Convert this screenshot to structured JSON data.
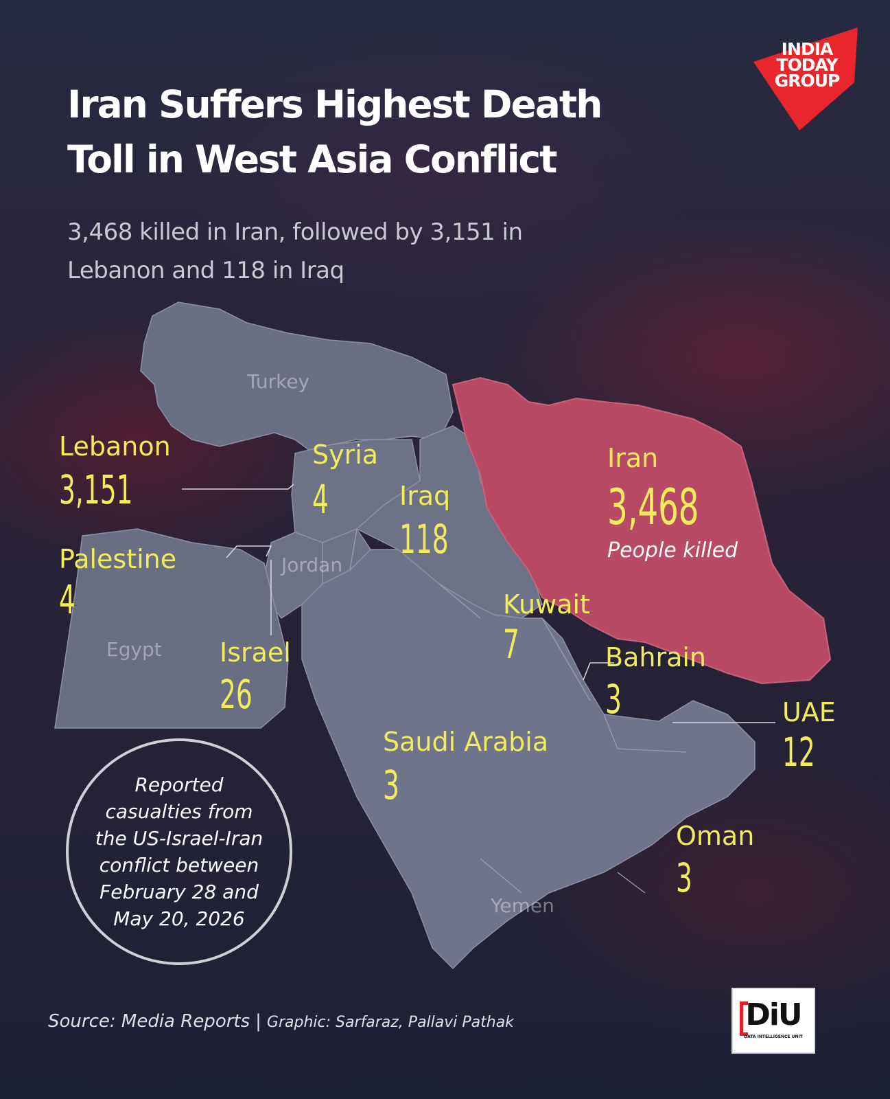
{
  "header": {
    "title_line1": "Iran Suffers Highest Death",
    "title_line2": "Toll in West Asia Conflict",
    "subtitle_line1": "3,468 killed in Iran, followed by 3,151 in",
    "subtitle_line2": "Lebanon and 118 in Iraq"
  },
  "logo": {
    "line1": "INDIA",
    "line2": "TODAY",
    "line3": "GROUP",
    "color": "#e8262c"
  },
  "map_labels": {
    "turkey": "Turkey",
    "jordan": "Jordan",
    "egypt": "Egypt",
    "yemen": "Yemen"
  },
  "countries": {
    "lebanon": {
      "name": "Lebanon",
      "value": "3,151"
    },
    "syria": {
      "name": "Syria",
      "value": "4"
    },
    "iraq": {
      "name": "Iraq",
      "value": "118"
    },
    "iran": {
      "name": "Iran",
      "value": "3,468",
      "note": "People killed"
    },
    "palestine": {
      "name": "Palestine",
      "value": "4"
    },
    "kuwait": {
      "name": "Kuwait",
      "value": "7"
    },
    "israel": {
      "name": "Israel",
      "value": "26"
    },
    "bahrain": {
      "name": "Bahrain",
      "value": "3"
    },
    "uae": {
      "name": "UAE",
      "value": "12"
    },
    "saudi_arabia": {
      "name": "Saudi Arabia",
      "value": "3"
    },
    "oman": {
      "name": "Oman",
      "value": "3"
    }
  },
  "note": {
    "line1": "Reported",
    "line2": "casualties from",
    "line3": "the US-Israel-Iran",
    "line4": "conflict between",
    "line5": "February 28 and",
    "line6": "May 20, 2026"
  },
  "footer": {
    "source": "Source: Media Reports",
    "separator": "|",
    "graphic": "Graphic: Sarfaraz, Pallavi Pathak"
  },
  "diu_logo": {
    "mark": "DiU",
    "caption": "DATA INTELLIGENCE UNIT"
  },
  "colors": {
    "highlight": "#f2ec5a",
    "iran_fill": "#b94a66",
    "land_fill": "#6e7287"
  }
}
